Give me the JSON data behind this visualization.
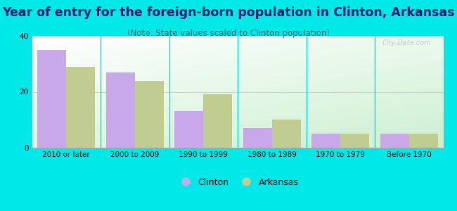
{
  "title": "Year of entry for the foreign-born population in Clinton, Arkansas",
  "subtitle": "(Note: State values scaled to Clinton population)",
  "categories": [
    "2010 or later",
    "2000 to 2009",
    "1990 to 1999",
    "1980 to 1989",
    "1970 to 1979",
    "Before 1970"
  ],
  "clinton_values": [
    35,
    27,
    13,
    7,
    5,
    5
  ],
  "arkansas_values": [
    29,
    24,
    19,
    10,
    5,
    5
  ],
  "clinton_color": "#c8a8e8",
  "arkansas_color": "#c0cc90",
  "background_outer": "#00e8e8",
  "grid_color": "#e8c8c8",
  "ylim": [
    0,
    40
  ],
  "yticks": [
    0,
    20,
    40
  ],
  "bar_width": 0.42,
  "title_fontsize": 12.5,
  "subtitle_fontsize": 8.5,
  "tick_fontsize": 7.5,
  "legend_fontsize": 9
}
